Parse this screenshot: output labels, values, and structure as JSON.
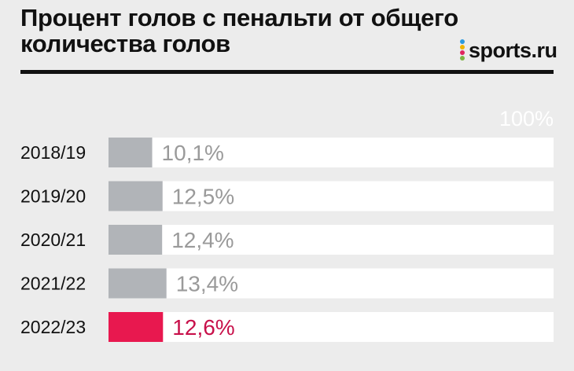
{
  "header": {
    "title": "Процент голов с пенальти от общего количества голов",
    "logo_text": "sports.ru",
    "logo_dot_colors": [
      "#2b9ae0",
      "#f0b400",
      "#e0245e",
      "#7cb342"
    ]
  },
  "colors": {
    "background": "#ececec",
    "track": "#ffffff",
    "bar_default": "#b1b4b8",
    "bar_highlight": "#e8184f",
    "label_default": "#9a9a9a",
    "label_highlight": "#c8104a"
  },
  "chart_data": {
    "type": "bar",
    "orientation": "horizontal",
    "title": "Процент голов с пенальти от общего количества голов",
    "max_label": "100%",
    "xlim": [
      0,
      100
    ],
    "categories": [
      "2018/19",
      "2019/20",
      "2020/21",
      "2021/22",
      "2022/23"
    ],
    "values": [
      10.1,
      12.5,
      12.4,
      13.4,
      12.6
    ],
    "value_labels": [
      "10,1%",
      "12,5%",
      "12,4%",
      "13,4%",
      "12,6%"
    ],
    "highlight_index": 4
  }
}
